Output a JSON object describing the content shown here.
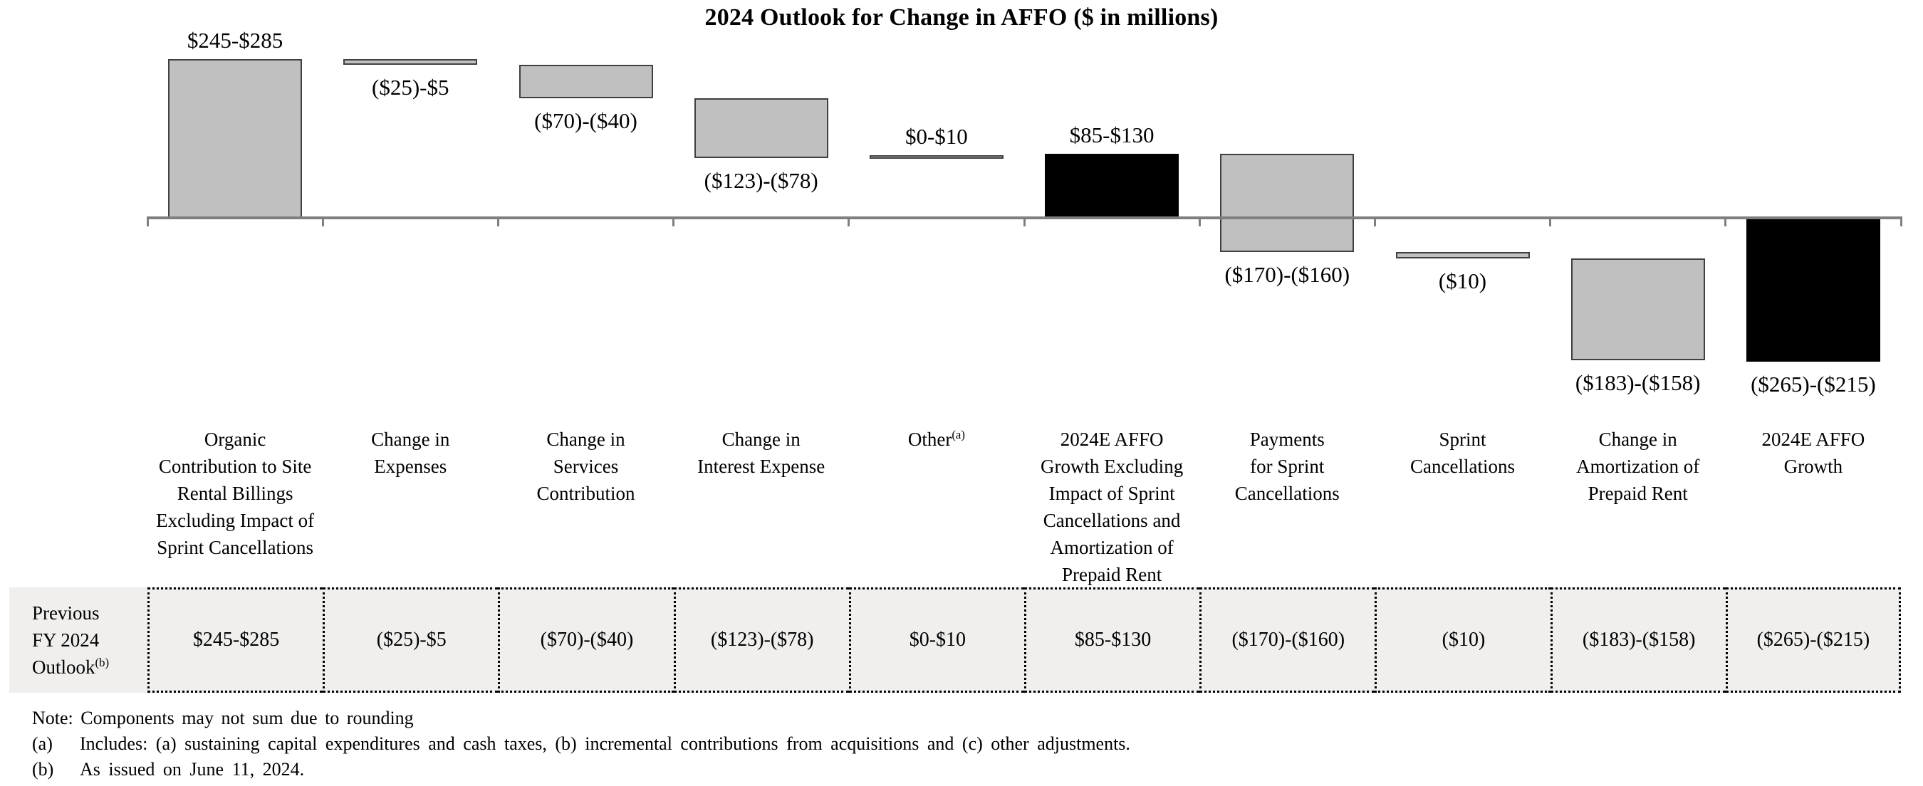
{
  "title": "2024 Outlook for Change in AFFO ($ in millions)",
  "chart_data": {
    "type": "waterfall",
    "title": "2024 Outlook for Change in AFFO ($ in millions)",
    "unit": "$ in millions",
    "baseline_value": 0,
    "grid": false,
    "colors": {
      "bar_fill": "#c0c0c0",
      "bar_border": "#404040",
      "total_bar_fill": "#000000",
      "axis_line": "#7f7f7f"
    },
    "bars": [
      {
        "category_lines": [
          "Organic",
          "Contribution to Site",
          "Rental Billings",
          "Excluding Impact of",
          "Sprint Cancellations"
        ],
        "sup": "",
        "value_label": "$245-$285",
        "range_low": 245,
        "range_high": 285,
        "value_mid": 265,
        "is_total": false,
        "color": "gray",
        "label_position": "above"
      },
      {
        "category_lines": [
          "Change in",
          "Expenses"
        ],
        "sup": "",
        "value_label": "($25)-$5",
        "range_low": -25,
        "range_high": 5,
        "value_mid": -10,
        "is_total": false,
        "color": "gray",
        "label_position": "below"
      },
      {
        "category_lines": [
          "Change in",
          "Services",
          "Contribution"
        ],
        "sup": "",
        "value_label": "($70)-($40)",
        "range_low": -70,
        "range_high": -40,
        "value_mid": -55,
        "is_total": false,
        "color": "gray",
        "label_position": "below"
      },
      {
        "category_lines": [
          "Change in",
          "Interest Expense"
        ],
        "sup": "",
        "value_label": "($123)-($78)",
        "range_low": -123,
        "range_high": -78,
        "value_mid": -100.5,
        "is_total": false,
        "color": "gray",
        "label_position": "below"
      },
      {
        "category_lines": [
          "Other"
        ],
        "sup": "(a)",
        "value_label": "$0-$10",
        "range_low": 0,
        "range_high": 10,
        "value_mid": 5,
        "is_total": false,
        "color": "gray",
        "label_position": "above"
      },
      {
        "category_lines": [
          "2024E AFFO",
          "Growth Excluding",
          "Impact of Sprint",
          "Cancellations and",
          "Amortization of",
          "Prepaid Rent"
        ],
        "sup": "",
        "value_label": "$85-$130",
        "range_low": 85,
        "range_high": 130,
        "value_mid": 107.5,
        "is_total": true,
        "color": "black",
        "label_position": "above"
      },
      {
        "category_lines": [
          "Payments",
          "for Sprint",
          "Cancellations"
        ],
        "sup": "",
        "value_label": "($170)-($160)",
        "range_low": -170,
        "range_high": -160,
        "value_mid": -165,
        "is_total": false,
        "color": "gray",
        "label_position": "below"
      },
      {
        "category_lines": [
          "Sprint",
          "Cancellations"
        ],
        "sup": "",
        "value_label": "($10)",
        "range_low": -10,
        "range_high": -10,
        "value_mid": -10,
        "is_total": false,
        "color": "gray",
        "label_position": "below"
      },
      {
        "category_lines": [
          "Change in",
          "Amortization of",
          "Prepaid Rent"
        ],
        "sup": "",
        "value_label": "($183)-($158)",
        "range_low": -183,
        "range_high": -158,
        "value_mid": -170.5,
        "is_total": false,
        "color": "gray",
        "label_position": "below"
      },
      {
        "category_lines": [
          "2024E AFFO",
          "Growth"
        ],
        "sup": "",
        "value_label": "($265)-($215)",
        "range_low": -265,
        "range_high": -215,
        "value_mid": -240,
        "is_total": true,
        "color": "black",
        "label_position": "below"
      }
    ]
  },
  "table": {
    "row_label_lines": [
      "Previous",
      "FY 2024",
      "Outlook"
    ],
    "row_label_sup": "(b)",
    "values": [
      "$245-$285",
      "($25)-$5",
      "($70)-($40)",
      "($123)-($78)",
      "$0-$10",
      "$85-$130",
      "($170)-($160)",
      "($10)",
      "($183)-($158)",
      "($265)-($215)"
    ]
  },
  "footnotes": {
    "note": "Note: Components may not sum due to rounding",
    "items": [
      {
        "marker": "(a)",
        "text": "Includes: (a) sustaining capital expenditures and cash taxes, (b) incremental contributions from acquisitions and (c) other adjustments."
      },
      {
        "marker": "(b)",
        "text": "As issued on June 11, 2024."
      }
    ]
  }
}
